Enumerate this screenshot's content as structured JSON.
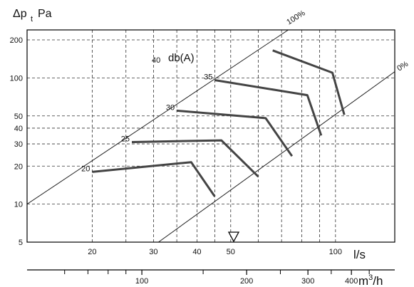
{
  "chart_data": {
    "type": "line",
    "title": "",
    "ylabel_parts": {
      "delta": "Δp",
      "sub": "t",
      "unit": "Pa"
    },
    "yscale": "log",
    "ylim": [
      5,
      240
    ],
    "yticks": [
      5,
      10,
      20,
      30,
      40,
      50,
      100,
      200
    ],
    "xscale": "log",
    "xlim": [
      13,
      148
    ],
    "xlabel": "l/s",
    "xticks": [
      20,
      30,
      40,
      50,
      100
    ],
    "x2label": {
      "base": "m",
      "sup": "3",
      "tail": "/h"
    },
    "x2ticks": [
      100,
      200,
      300,
      400
    ],
    "x2_minor_ticks": [
      60,
      70,
      80,
      90,
      150,
      250,
      350,
      450
    ],
    "x_grid": [
      20,
      25,
      30,
      35,
      40,
      45,
      50,
      60,
      70,
      80,
      90,
      100
    ],
    "y_grid": [
      5,
      10,
      20,
      30,
      40,
      50,
      100,
      200
    ],
    "grid": true,
    "db_title": {
      "prefix": "40",
      "text": "db(A)"
    },
    "boundary_lines": [
      {
        "name": "100%",
        "points": [
          [
            13,
            10
          ],
          [
            78,
            270
          ]
        ]
      },
      {
        "name": "0%",
        "points": [
          [
            31,
            5
          ],
          [
            148,
            112
          ]
        ]
      }
    ],
    "series": [
      {
        "name": "20",
        "values": [
          [
            20,
            18
          ],
          [
            38.5,
            21.5
          ],
          [
            45,
            11.5
          ]
        ]
      },
      {
        "name": "25",
        "values": [
          [
            26,
            31
          ],
          [
            47,
            32
          ],
          [
            60,
            16.5
          ]
        ]
      },
      {
        "name": "30",
        "values": [
          [
            35,
            55
          ],
          [
            63,
            48
          ],
          [
            75,
            24
          ]
        ]
      },
      {
        "name": "35",
        "values": [
          [
            45,
            96
          ],
          [
            83,
            73
          ],
          [
            91,
            35
          ]
        ]
      },
      {
        "name": "",
        "values": [
          [
            66,
            165
          ],
          [
            98,
            110
          ],
          [
            106,
            51
          ]
        ]
      }
    ],
    "marker": {
      "name": "selection-marker",
      "x": 51
    }
  }
}
